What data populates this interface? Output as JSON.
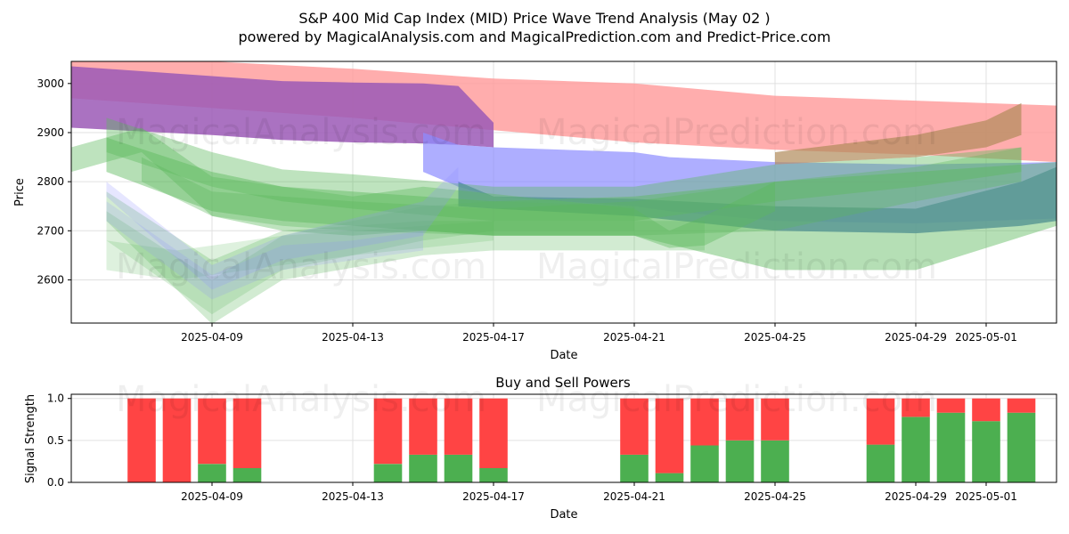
{
  "title_line1": "S&P 400 Mid Cap Index (MID) Price Wave Trend Analysis (May 02 )",
  "title_line2": "powered by MagicalAnalysis.com and MagicalPrediction.com and Predict-Price.com",
  "watermarks": [
    "MagicalAnalysis.com",
    "MagicalPrediction.com"
  ],
  "colors": {
    "red": "#ff9999",
    "purple": "#9b59b6",
    "blue": "#8c8cff",
    "green": "#5cb85c",
    "steel": "#5b7fc4",
    "brown": "#b08a5a",
    "buy": "#4caf50",
    "sell": "#ff4444"
  },
  "chart_data": [
    {
      "type": "area",
      "title": "",
      "xlabel": "Date",
      "ylabel": "Price",
      "x_ticks": [
        "2025-04-09",
        "2025-04-13",
        "2025-04-17",
        "2025-04-21",
        "2025-04-25",
        "2025-04-29",
        "2025-05-01"
      ],
      "y_ticks": [
        2600,
        2700,
        2800,
        2900,
        3000
      ],
      "xlim": [
        "2025-04-05",
        "2025-05-03"
      ],
      "ylim": [
        2512,
        3045
      ],
      "grid": true,
      "bands": [
        {
          "color": "red",
          "opacity": 0.8,
          "x": [
            "2025-04-05",
            "2025-04-09",
            "2025-04-13",
            "2025-04-17",
            "2025-04-21",
            "2025-04-25",
            "2025-04-29",
            "2025-05-03"
          ],
          "upper": [
            3050,
            3045,
            3030,
            3010,
            3000,
            2975,
            2965,
            2955
          ],
          "lower": [
            2970,
            2950,
            2930,
            2905,
            2880,
            2865,
            2855,
            2840
          ]
        },
        {
          "color": "purple",
          "opacity": 0.85,
          "x": [
            "2025-04-05",
            "2025-04-09",
            "2025-04-11",
            "2025-04-13",
            "2025-04-15",
            "2025-04-16",
            "2025-04-17"
          ],
          "upper": [
            3035,
            3015,
            3005,
            3002,
            3000,
            2995,
            2920
          ],
          "lower": [
            2910,
            2895,
            2885,
            2880,
            2878,
            2875,
            2870
          ]
        },
        {
          "color": "blue",
          "opacity": 0.7,
          "x": [
            "2025-04-15",
            "2025-04-16",
            "2025-04-17",
            "2025-04-21",
            "2025-04-22",
            "2025-04-25",
            "2025-04-29",
            "2025-05-03"
          ],
          "upper": [
            2900,
            2875,
            2870,
            2860,
            2850,
            2840,
            2835,
            2840
          ],
          "lower": [
            2820,
            2790,
            2770,
            2750,
            2740,
            2720,
            2715,
            2725
          ]
        },
        {
          "color": "steel",
          "opacity": 0.85,
          "x": [
            "2025-04-16",
            "2025-04-17",
            "2025-04-21",
            "2025-04-25",
            "2025-04-29",
            "2025-05-02",
            "2025-05-03"
          ],
          "upper": [
            2800,
            2770,
            2765,
            2750,
            2745,
            2800,
            2830
          ],
          "lower": [
            2750,
            2745,
            2730,
            2700,
            2695,
            2710,
            2720
          ]
        },
        {
          "color": "brown",
          "opacity": 0.7,
          "x": [
            "2025-04-25",
            "2025-04-29",
            "2025-05-01",
            "2025-05-02"
          ],
          "upper": [
            2860,
            2895,
            2925,
            2960
          ],
          "lower": [
            2835,
            2850,
            2870,
            2895
          ]
        },
        {
          "color": "green",
          "opacity": 0.45,
          "x": [
            "2025-04-06",
            "2025-04-09",
            "2025-04-11",
            "2025-04-13",
            "2025-04-17",
            "2025-04-21",
            "2025-04-25",
            "2025-04-29",
            "2025-05-03"
          ],
          "upper": [
            2890,
            2820,
            2790,
            2780,
            2760,
            2770,
            2800,
            2820,
            2840
          ],
          "lower": [
            2820,
            2740,
            2720,
            2710,
            2690,
            2690,
            2620,
            2620,
            2710
          ]
        },
        {
          "color": "green",
          "opacity": 0.4,
          "x": [
            "2025-04-06",
            "2025-04-09",
            "2025-04-11",
            "2025-04-13",
            "2025-04-17",
            "2025-04-21",
            "2025-04-25",
            "2025-04-29",
            "2025-05-02"
          ],
          "upper": [
            2930,
            2860,
            2825,
            2815,
            2790,
            2790,
            2835,
            2850,
            2870
          ],
          "lower": [
            2860,
            2790,
            2760,
            2745,
            2720,
            2720,
            2760,
            2790,
            2820
          ]
        },
        {
          "color": "green",
          "opacity": 0.35,
          "x": [
            "2025-04-07",
            "2025-04-09",
            "2025-04-11",
            "2025-04-13",
            "2025-04-17",
            "2025-04-21",
            "2025-04-25",
            "2025-04-29",
            "2025-05-02"
          ],
          "upper": [
            2850,
            2780,
            2770,
            2760,
            2745,
            2760,
            2800,
            2830,
            2870
          ],
          "lower": [
            2800,
            2730,
            2710,
            2700,
            2690,
            2690,
            2700,
            2760,
            2800
          ]
        },
        {
          "color": "green",
          "opacity": 0.4,
          "x": [
            "2025-04-05",
            "2025-04-07",
            "2025-04-09",
            "2025-04-11",
            "2025-04-13",
            "2025-04-15",
            "2025-04-17",
            "2025-04-21",
            "2025-04-22",
            "2025-04-23",
            "2025-04-25"
          ],
          "upper": [
            2870,
            2910,
            2810,
            2790,
            2770,
            2790,
            2775,
            2745,
            2700,
            2730,
            2800
          ],
          "lower": [
            2820,
            2860,
            2730,
            2700,
            2690,
            2700,
            2690,
            2690,
            2665,
            2670,
            2740
          ]
        },
        {
          "color": "green",
          "opacity": 0.28,
          "x": [
            "2025-04-06",
            "2025-04-09",
            "2025-04-11",
            "2025-04-15",
            "2025-04-17",
            "2025-04-21",
            "2025-04-23"
          ],
          "upper": [
            2780,
            2640,
            2700,
            2720,
            2720,
            2720,
            2720
          ],
          "lower": [
            2720,
            2510,
            2600,
            2650,
            2660,
            2660,
            2660
          ]
        },
        {
          "color": "green",
          "opacity": 0.22,
          "x": [
            "2025-04-06",
            "2025-04-09",
            "2025-04-11",
            "2025-04-15",
            "2025-04-17",
            "2025-04-21"
          ],
          "upper": [
            2740,
            2600,
            2690,
            2750,
            2760,
            2750
          ],
          "lower": [
            2680,
            2530,
            2620,
            2680,
            2700,
            2700
          ]
        },
        {
          "color": "green",
          "opacity": 0.2,
          "x": [
            "2025-04-06",
            "2025-04-08",
            "2025-04-11",
            "2025-04-13",
            "2025-04-17"
          ],
          "upper": [
            2680,
            2660,
            2690,
            2700,
            2720
          ],
          "lower": [
            2620,
            2600,
            2630,
            2650,
            2680
          ]
        },
        {
          "color": "blue",
          "opacity": 0.22,
          "x": [
            "2025-04-06",
            "2025-04-09",
            "2025-04-11",
            "2025-04-15",
            "2025-04-16"
          ],
          "upper": [
            2800,
            2630,
            2690,
            2760,
            2830
          ],
          "lower": [
            2770,
            2580,
            2640,
            2690,
            2790
          ]
        },
        {
          "color": "blue",
          "opacity": 0.18,
          "x": [
            "2025-04-06",
            "2025-04-09",
            "2025-04-11",
            "2025-04-13",
            "2025-04-15"
          ],
          "upper": [
            2760,
            2610,
            2670,
            2680,
            2700
          ],
          "lower": [
            2720,
            2560,
            2620,
            2640,
            2660
          ]
        }
      ]
    },
    {
      "type": "bar",
      "title": "Buy and Sell Powers",
      "xlabel": "Date",
      "ylabel": "Signal Strength",
      "x_ticks": [
        "2025-04-09",
        "2025-04-13",
        "2025-04-17",
        "2025-04-21",
        "2025-04-25",
        "2025-04-29",
        "2025-05-01"
      ],
      "y_ticks": [
        0.0,
        0.5,
        1.0
      ],
      "y_tick_labels": [
        "0.0",
        "0.5",
        "1.0"
      ],
      "xlim": [
        "2025-04-05",
        "2025-05-03"
      ],
      "ylim": [
        0,
        1.05
      ],
      "grid": true,
      "dates": [
        "2025-04-07",
        "2025-04-08",
        "2025-04-09",
        "2025-04-10",
        "2025-04-14",
        "2025-04-15",
        "2025-04-16",
        "2025-04-17",
        "2025-04-21",
        "2025-04-22",
        "2025-04-23",
        "2025-04-24",
        "2025-04-25",
        "2025-04-28",
        "2025-04-29",
        "2025-04-30",
        "2025-05-01",
        "2025-05-02"
      ],
      "buy": [
        0.0,
        0.0,
        0.22,
        0.17,
        0.22,
        0.33,
        0.33,
        0.17,
        0.33,
        0.11,
        0.44,
        0.5,
        0.5,
        0.45,
        0.78,
        0.83,
        0.73,
        0.83
      ],
      "sell": [
        1.0,
        1.0,
        0.78,
        0.83,
        0.78,
        0.67,
        0.67,
        0.83,
        0.67,
        0.89,
        0.56,
        0.5,
        0.5,
        0.55,
        0.22,
        0.17,
        0.27,
        0.17
      ]
    }
  ]
}
